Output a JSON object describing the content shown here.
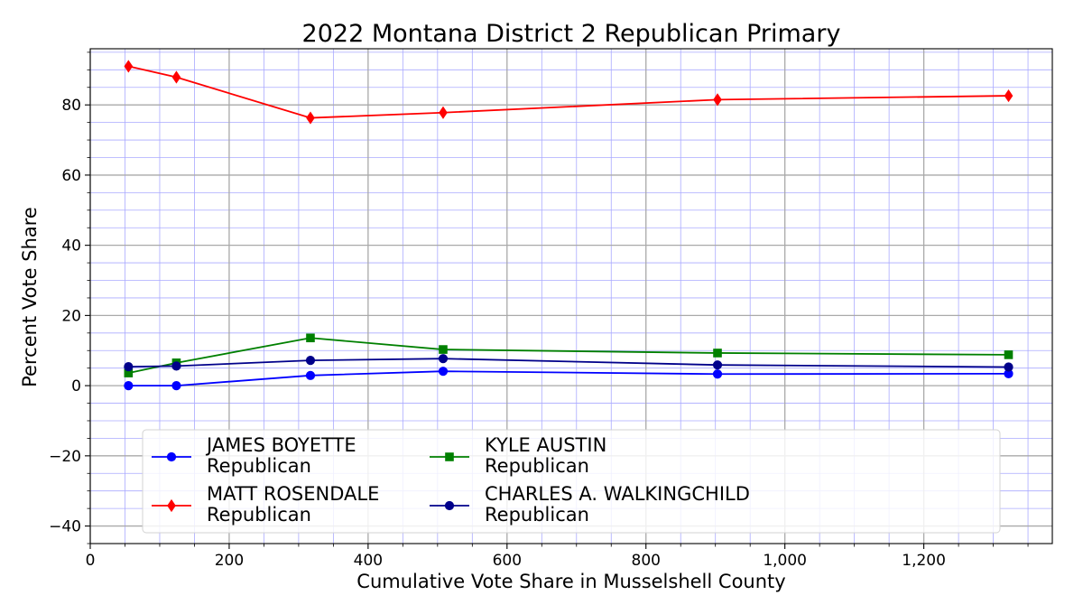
{
  "chart_data": {
    "type": "line",
    "title": "2022 Montana District 2 Republican Primary",
    "xlabel": "Cumulative Vote Share in Musselshell County",
    "ylabel": "Percent Vote Share",
    "xlim": [
      0,
      1385
    ],
    "ylim": [
      -45,
      96
    ],
    "x_major_ticks": [
      0,
      200,
      400,
      600,
      800,
      1000,
      1200
    ],
    "x_tick_labels": [
      "0",
      "200",
      "400",
      "600",
      "800",
      "1,000",
      "1,200"
    ],
    "y_major_ticks": [
      -40,
      -20,
      0,
      20,
      40,
      60,
      80
    ],
    "y_tick_labels": [
      "−40",
      "−20",
      "0",
      "20",
      "40",
      "60",
      "80"
    ],
    "x_minor_step": 50,
    "y_minor_step": 5,
    "grid": true,
    "legend_position": "lower-center",
    "x": [
      55,
      124,
      317,
      508,
      903,
      1322
    ],
    "series": [
      {
        "name": "JAMES BOYETTE",
        "party": "Republican",
        "color": "#0000ff",
        "marker": "circle",
        "values": [
          0.0,
          0.0,
          2.9,
          4.1,
          3.3,
          3.4
        ]
      },
      {
        "name": "MATT ROSENDALE",
        "party": "Republican",
        "color": "#ff0000",
        "marker": "diamond",
        "values": [
          91.0,
          87.9,
          76.3,
          77.8,
          81.5,
          82.6
        ]
      },
      {
        "name": "KYLE AUSTIN",
        "party": "Republican",
        "color": "#008000",
        "marker": "square",
        "values": [
          3.6,
          6.5,
          13.6,
          10.3,
          9.3,
          8.8
        ]
      },
      {
        "name": "CHARLES A. WALKINGCHILD",
        "party": "Republican",
        "color": "#00008b",
        "marker": "circle",
        "values": [
          5.4,
          5.6,
          7.2,
          7.7,
          5.9,
          5.3
        ]
      }
    ]
  }
}
